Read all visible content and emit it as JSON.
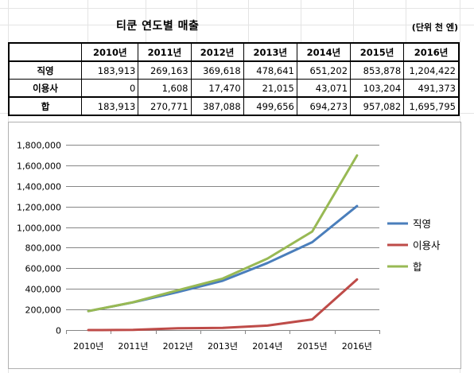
{
  "title": "티쿤 연도별 매출",
  "unit": "(단위 천 엔)",
  "table": {
    "headers": [
      "",
      "2010년",
      "2011년",
      "2012년",
      "2013년",
      "2014년",
      "2015년",
      "2016년"
    ],
    "rows": [
      {
        "label": "직영",
        "values": [
          "183,913",
          "269,163",
          "369,618",
          "478,641",
          "651,202",
          "853,878",
          "1,204,422"
        ]
      },
      {
        "label": "이용사",
        "values": [
          "0",
          "1,608",
          "17,470",
          "21,015",
          "43,071",
          "103,204",
          "491,373"
        ]
      },
      {
        "label": "합",
        "values": [
          "183,913",
          "270,771",
          "387,088",
          "499,656",
          "694,273",
          "957,082",
          "1,695,795"
        ]
      }
    ]
  },
  "colors": {
    "직영": "#4a7ebb",
    "이용사": "#be4b48",
    "합": "#98b954",
    "gridline": "#868686"
  },
  "chart_data": {
    "type": "line",
    "categories": [
      "2010년",
      "2011년",
      "2012년",
      "2013년",
      "2014년",
      "2015년",
      "2016년"
    ],
    "series": [
      {
        "name": "직영",
        "values": [
          183913,
          269163,
          369618,
          478641,
          651202,
          853878,
          1204422
        ]
      },
      {
        "name": "이용사",
        "values": [
          0,
          1608,
          17470,
          21015,
          43071,
          103204,
          491373
        ]
      },
      {
        "name": "합",
        "values": [
          183913,
          270771,
          387088,
          499656,
          694273,
          957082,
          1695795
        ]
      }
    ],
    "ylim": [
      0,
      1800000
    ],
    "yticks": [
      0,
      200000,
      400000,
      600000,
      800000,
      1000000,
      1200000,
      1400000,
      1600000,
      1800000
    ],
    "ytick_labels": [
      "0",
      "200,000",
      "400,000",
      "600,000",
      "800,000",
      "1,000,000",
      "1,200,000",
      "1,400,000",
      "1,600,000",
      "1,800,000"
    ],
    "grid": true,
    "legend": "right"
  }
}
